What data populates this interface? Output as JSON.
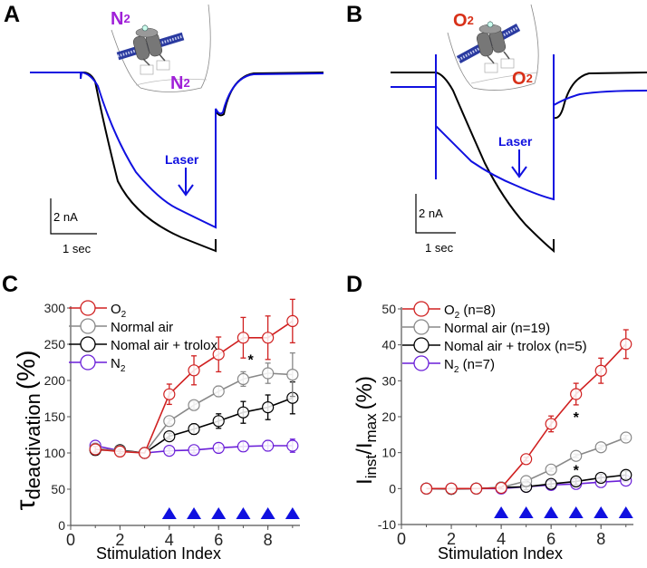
{
  "panels": {
    "A": {
      "label": "A",
      "gas_label_top": "N",
      "gas_label_top_sub": "2",
      "gas_label_bottom": "N",
      "gas_label_bottom_sub": "2",
      "gas_color": "#a020d8",
      "laser_label": "Laser",
      "scale_current": "2 nA",
      "scale_time": "1 sec",
      "trace_colors": {
        "control": "#000000",
        "laser": "#1010e0"
      }
    },
    "B": {
      "label": "B",
      "gas_label_top": "O",
      "gas_label_top_sub": "2",
      "gas_label_bottom": "O",
      "gas_label_bottom_sub": "2",
      "gas_color": "#d83018",
      "laser_label": "Laser",
      "scale_current": "2 nA",
      "scale_time": "1 sec",
      "trace_colors": {
        "control": "#000000",
        "laser": "#1010e0"
      }
    }
  },
  "chart_data": [
    {
      "panel": "C",
      "type": "line",
      "title": "",
      "xlabel": "Stimulation Index",
      "ylabel_main": "τ",
      "ylabel_sub": "deactivation",
      "ylabel_unit": "(%)",
      "xlim": [
        0,
        9.3
      ],
      "ylim": [
        0,
        300
      ],
      "xticks": [
        0,
        2,
        4,
        6,
        8
      ],
      "yticks": [
        0,
        50,
        100,
        150,
        200,
        250,
        300
      ],
      "legend_position": "top-left",
      "series": [
        {
          "name": "O",
          "name_sub": "2",
          "name_suffix": "",
          "color": "#d02020",
          "x": [
            1,
            2,
            3,
            4,
            5,
            6,
            7,
            8,
            9
          ],
          "y": [
            105,
            102,
            100,
            181,
            214,
            236,
            259,
            259,
            282
          ],
          "err": [
            4,
            3,
            0,
            14,
            20,
            24,
            28,
            30,
            30
          ]
        },
        {
          "name": "Normal air",
          "name_sub": "",
          "name_suffix": "",
          "color": "#888888",
          "x": [
            1,
            2,
            3,
            4,
            5,
            6,
            7,
            8,
            9
          ],
          "y": [
            106,
            103,
            100,
            144,
            166,
            185,
            202,
            210,
            208
          ],
          "err": [
            4,
            3,
            0,
            4,
            5,
            7,
            10,
            14,
            30
          ]
        },
        {
          "name": "Nomal air + trolox",
          "name_sub": "",
          "name_suffix": "",
          "color": "#000000",
          "x": [
            1,
            2,
            3,
            4,
            5,
            6,
            7,
            8,
            9
          ],
          "y": [
            104,
            104,
            100,
            123,
            133,
            144,
            156,
            163,
            176
          ],
          "err": [
            3,
            4,
            0,
            4,
            7,
            10,
            15,
            17,
            22
          ]
        },
        {
          "name": "N",
          "name_sub": "2",
          "name_suffix": "",
          "color": "#6a1fd8",
          "x": [
            1,
            2,
            3,
            4,
            5,
            6,
            7,
            8,
            9
          ],
          "y": [
            110,
            103,
            100,
            103,
            104,
            107,
            109,
            110,
            110
          ],
          "err": [
            4,
            3,
            0,
            4,
            4,
            6,
            7,
            7,
            9
          ]
        }
      ],
      "annotations": [
        {
          "text": "*",
          "x": 7.3,
          "y": 232
        }
      ],
      "laser_markers_x": [
        4,
        5,
        6,
        7,
        8,
        9
      ],
      "marker_color": "#1010e0"
    },
    {
      "panel": "D",
      "type": "line",
      "title": "",
      "xlabel": "Stimulation Index",
      "ylabel_main": "I",
      "ylabel_sub": "inst",
      "ylabel_mid": "/I",
      "ylabel_sub2": "max",
      "ylabel_unit": "(%)",
      "xlim": [
        0,
        9.3
      ],
      "ylim": [
        -10,
        50
      ],
      "xticks": [
        0,
        2,
        4,
        6,
        8
      ],
      "yticks": [
        -10,
        0,
        10,
        20,
        30,
        40,
        50
      ],
      "legend_position": "top-left",
      "series": [
        {
          "name": "O",
          "name_sub": "2",
          "name_suffix": " (n=8)",
          "color": "#d02020",
          "x": [
            1,
            2,
            3,
            4,
            5,
            6,
            7,
            8,
            9
          ],
          "y": [
            0,
            0,
            0,
            0.2,
            8.2,
            18,
            26.3,
            32.8,
            40.2
          ],
          "err": [
            0,
            0,
            0,
            0.3,
            0.5,
            2.2,
            3,
            3.5,
            4
          ]
        },
        {
          "name": "Normal air",
          "name_sub": "",
          "name_suffix": " (n=19)",
          "color": "#888888",
          "x": [
            1,
            2,
            3,
            4,
            5,
            6,
            7,
            8,
            9
          ],
          "y": [
            0,
            0,
            0,
            0.3,
            2.1,
            5.3,
            9.1,
            11.5,
            14.2
          ],
          "err": [
            0,
            0.3,
            0,
            0.3,
            0.4,
            0.5,
            0.5,
            0.6,
            0.6
          ]
        },
        {
          "name": "Nomal air + trolox",
          "name_sub": "",
          "name_suffix": " (n=5)",
          "color": "#000000",
          "x": [
            1,
            2,
            3,
            4,
            5,
            6,
            7,
            8,
            9
          ],
          "y": [
            0,
            -0.1,
            0,
            0.3,
            0.5,
            1.3,
            2,
            3,
            3.8
          ],
          "err": [
            0,
            0.8,
            0,
            0.8,
            0.8,
            0.9,
            0.9,
            1,
            1.1
          ]
        },
        {
          "name": "N",
          "name_sub": "2",
          "name_suffix": " (n=7)",
          "color": "#6a1fd8",
          "x": [
            1,
            2,
            3,
            4,
            5,
            6,
            7,
            8,
            9
          ],
          "y": [
            0,
            0,
            0,
            0,
            0.5,
            1,
            1.3,
            1.8,
            2.2
          ],
          "err": [
            0.5,
            0.3,
            0,
            0.3,
            0.3,
            0.3,
            0.3,
            0.3,
            0.3
          ]
        }
      ],
      "annotations": [
        {
          "text": "*",
          "x": 7,
          "y": 20.5
        },
        {
          "text": "*",
          "x": 7,
          "y": 5.8
        }
      ],
      "laser_markers_x": [
        4,
        5,
        6,
        7,
        8,
        9
      ],
      "marker_color": "#1010e0"
    }
  ]
}
